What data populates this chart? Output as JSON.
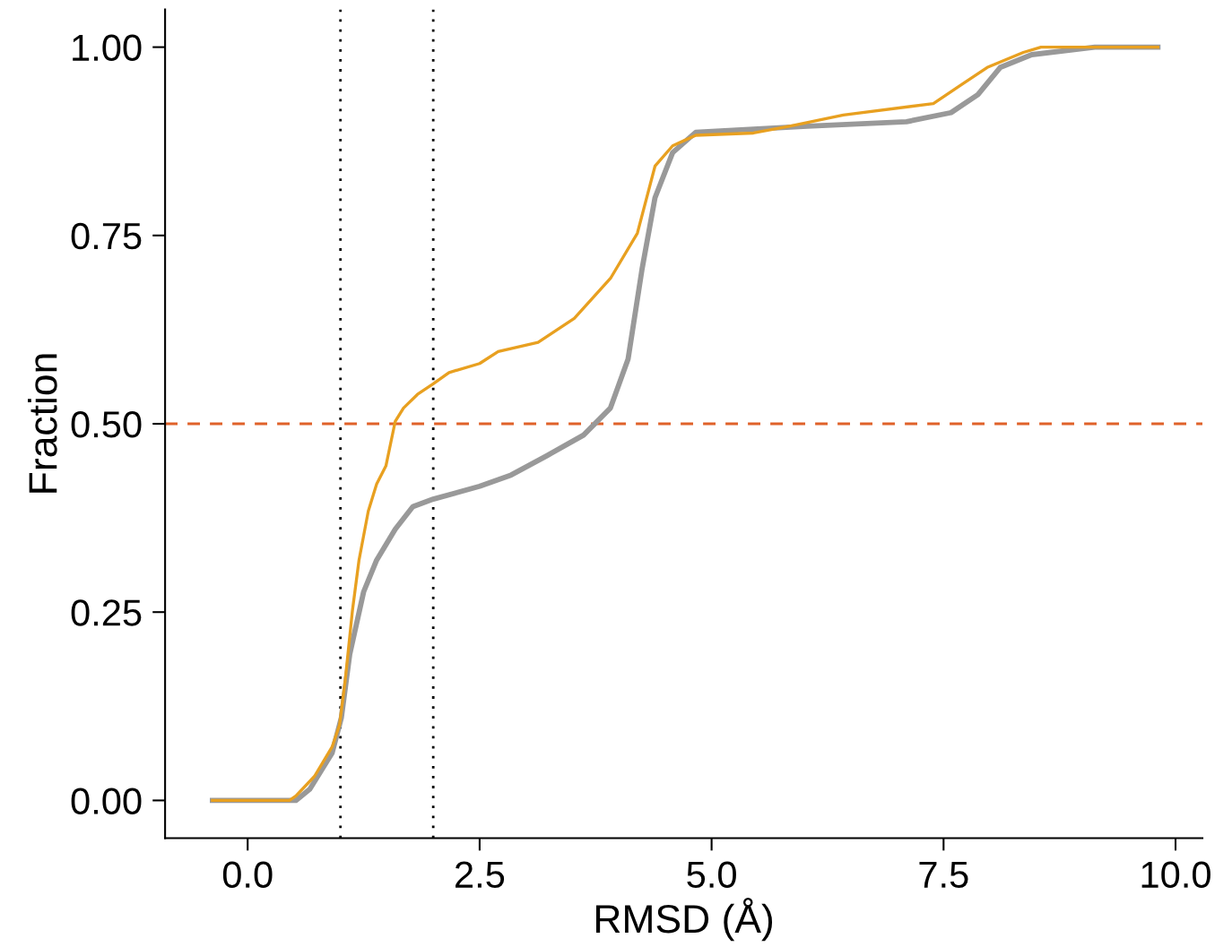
{
  "chart_data": {
    "type": "line",
    "xlabel": "RMSD (Å)",
    "ylabel": "Fraction",
    "xlim": [
      -0.89,
      10.29
    ],
    "ylim": [
      -0.05,
      1.05
    ],
    "xticks": [
      {
        "value": 0,
        "label": "0.0"
      },
      {
        "value": 2.5,
        "label": "2.5"
      },
      {
        "value": 5,
        "label": "5.0"
      },
      {
        "value": 7.5,
        "label": "7.5"
      },
      {
        "value": 10,
        "label": "10.0"
      }
    ],
    "yticks": [
      {
        "value": 0,
        "label": "0.00"
      },
      {
        "value": 0.25,
        "label": "0.25"
      },
      {
        "value": 0.5,
        "label": "0.50"
      },
      {
        "value": 0.75,
        "label": "0.75"
      },
      {
        "value": 1,
        "label": "1.00"
      }
    ],
    "grid": false,
    "legend": false,
    "marker": "none",
    "line_style": "solid",
    "series": [
      {
        "color": "#999999",
        "x": [
          -0.38,
          0.52,
          0.67,
          0.91,
          1.01,
          1.1,
          1.25,
          1.39,
          1.59,
          1.78,
          2.0,
          2.5,
          2.84,
          3.23,
          3.62,
          3.91,
          4.1,
          4.25,
          4.39,
          4.58,
          4.83,
          6.03,
          7.1,
          7.58,
          7.87,
          8.11,
          8.45,
          9.13,
          9.81
        ],
        "values": [
          0,
          0,
          0.015,
          0.063,
          0.11,
          0.194,
          0.277,
          0.319,
          0.36,
          0.39,
          0.4,
          0.417,
          0.432,
          0.458,
          0.485,
          0.521,
          0.586,
          0.705,
          0.8,
          0.86,
          0.887,
          0.895,
          0.901,
          0.913,
          0.937,
          0.973,
          0.99,
          1.0,
          1.0
        ]
      },
      {
        "color": "#e8a020",
        "x": [
          -0.38,
          0.45,
          0.52,
          0.72,
          0.91,
          0.99,
          1.05,
          1.13,
          1.2,
          1.3,
          1.39,
          1.49,
          1.59,
          1.68,
          1.83,
          2.0,
          2.17,
          2.5,
          2.7,
          3.13,
          3.52,
          3.91,
          4.2,
          4.39,
          4.58,
          4.83,
          5.45,
          5.84,
          6.42,
          7.39,
          7.68,
          7.97,
          8.36,
          8.55,
          9.81
        ],
        "values": [
          0,
          0,
          0.006,
          0.032,
          0.071,
          0.1,
          0.158,
          0.253,
          0.319,
          0.384,
          0.42,
          0.444,
          0.503,
          0.521,
          0.539,
          0.553,
          0.568,
          0.58,
          0.596,
          0.608,
          0.64,
          0.693,
          0.753,
          0.842,
          0.869,
          0.883,
          0.886,
          0.895,
          0.91,
          0.925,
          0.949,
          0.973,
          0.993,
          1.0,
          1.0
        ]
      }
    ],
    "ref_lines": [
      {
        "axis": "x",
        "value": 1,
        "color": "#000000",
        "line_style": "dotted"
      },
      {
        "axis": "x",
        "value": 2,
        "color": "#000000",
        "line_style": "dotted"
      },
      {
        "axis": "y",
        "value": 0.5,
        "color": "#e0622a",
        "line_style": "dashed"
      }
    ]
  }
}
